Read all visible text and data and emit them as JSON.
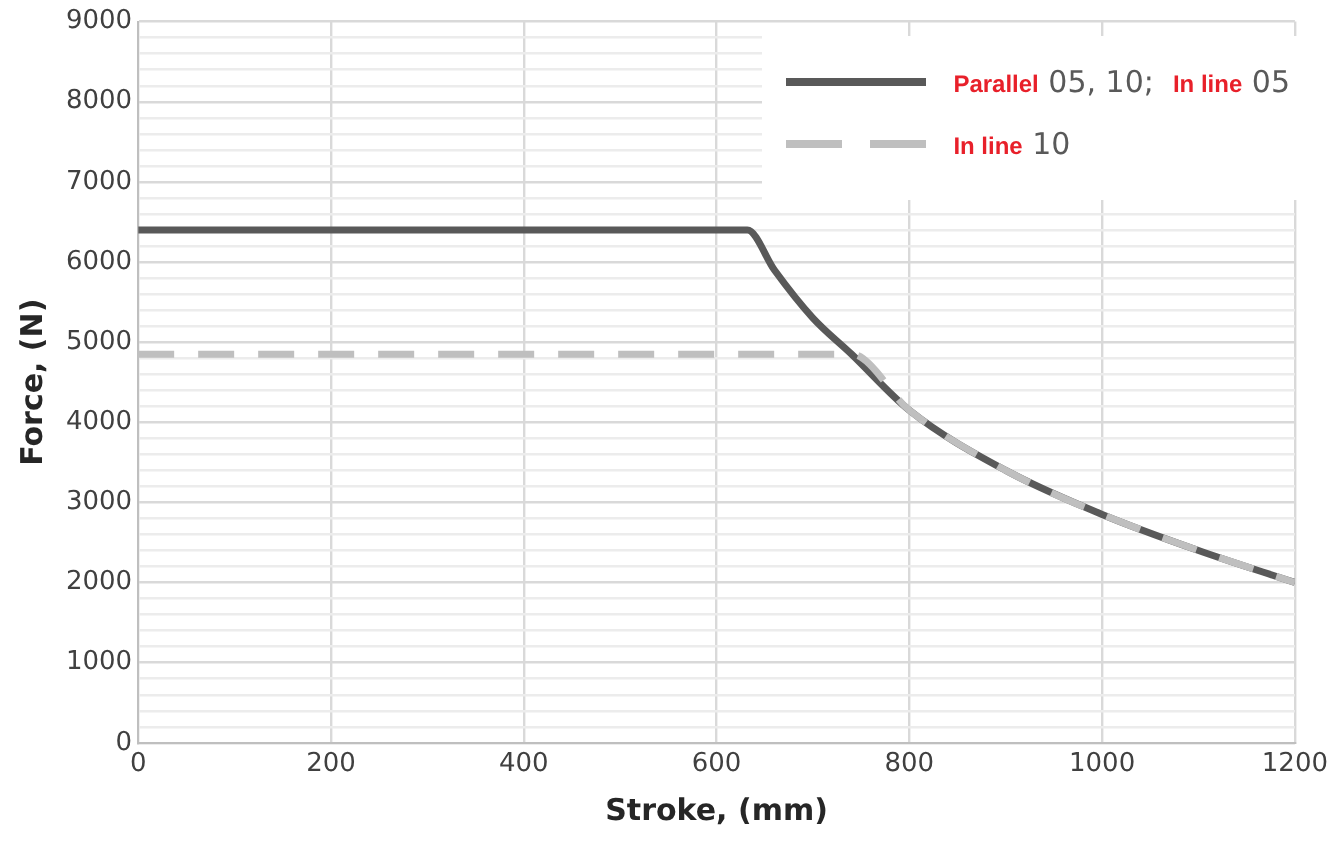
{
  "chart_data": {
    "type": "line",
    "xlabel": "Stroke, (mm)",
    "ylabel": "Force, (N)",
    "xlim": [
      0,
      1200
    ],
    "xticks": [
      0,
      200,
      400,
      600,
      800,
      1000,
      1200
    ],
    "ylim": [
      0,
      9000
    ],
    "yticks": [
      0,
      {
        "value": 200,
        "label": null
      },
      {
        "value": 400,
        "label": null
      },
      {
        "value": 600,
        "label": null
      },
      {
        "value": 800,
        "label": null
      },
      1000,
      {
        "value": 1200,
        "label": null
      },
      {
        "value": 1400,
        "label": null
      },
      {
        "value": 1600,
        "label": null
      },
      {
        "value": 1800,
        "label": null
      },
      2000,
      {
        "value": 2200,
        "label": null
      },
      {
        "value": 2400,
        "label": null
      },
      {
        "value": 2600,
        "label": null
      },
      {
        "value": 2800,
        "label": null
      },
      3000,
      {
        "value": 3200,
        "label": null
      },
      {
        "value": 3400,
        "label": null
      },
      {
        "value": 3600,
        "label": null
      },
      {
        "value": 3800,
        "label": null
      },
      4000,
      {
        "value": 4200,
        "label": null
      },
      {
        "value": 4400,
        "label": null
      },
      {
        "value": 4600,
        "label": null
      },
      {
        "value": 4800,
        "label": null
      },
      5000,
      {
        "value": 5200,
        "label": null
      },
      {
        "value": 5400,
        "label": null
      },
      {
        "value": 5600,
        "label": null
      },
      {
        "value": 5800,
        "label": null
      },
      6000,
      {
        "value": 6200,
        "label": null
      },
      {
        "value": 6400,
        "label": null
      },
      {
        "value": 6600,
        "label": null
      },
      {
        "value": 6800,
        "label": null
      },
      7000,
      {
        "value": 7200,
        "label": null
      },
      {
        "value": 7400,
        "label": null
      },
      {
        "value": 7600,
        "label": null
      },
      {
        "value": 7800,
        "label": null
      },
      8000,
      {
        "value": 8200,
        "label": null
      },
      {
        "value": 8400,
        "label": null
      },
      {
        "value": 8600,
        "label": null
      },
      {
        "value": 8800,
        "label": null
      },
      9000
    ],
    "grid": true,
    "legend": "top right",
    "marker": "none",
    "series": [
      {
        "name": "Parallel 05, 10;  In line 05",
        "color": "#595959",
        "line_style": "solid",
        "x": [
          0,
          632,
          660,
          700,
          740,
          800,
          900,
          1000,
          1100,
          1200
        ],
        "values": [
          6400,
          6400,
          5900,
          5300,
          4850,
          4150,
          3400,
          2850,
          2400,
          2000
        ]
      },
      {
        "name": "In line 10",
        "color": "#bfbfbf",
        "line_style": "dashed",
        "x": [
          0,
          740,
          800,
          900,
          1000,
          1100,
          1200
        ],
        "values": [
          4850,
          4850,
          4150,
          3400,
          2850,
          2400,
          2000
        ]
      }
    ]
  }
}
